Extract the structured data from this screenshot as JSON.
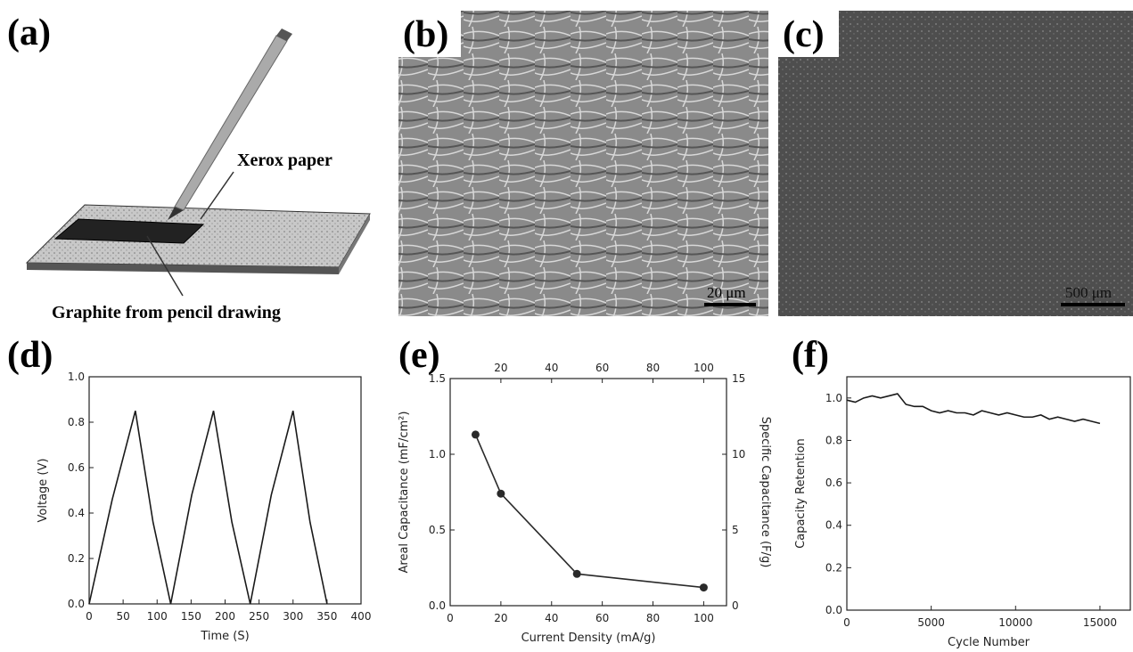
{
  "panel_a": {
    "label": "(a)",
    "annotations": [
      "Xerox paper",
      "Graphite from pencil drawing"
    ]
  },
  "panel_b": {
    "label": "(b)",
    "scale_bar": "20 μm"
  },
  "panel_c": {
    "label": "(c)",
    "scale_bar": "500 μm"
  },
  "chart_data": [
    {
      "type": "line",
      "panel_label": "(d)",
      "x_label": "Time (S)",
      "y_label": "Voltage (V)",
      "xlim": [
        0,
        400
      ],
      "xticks": [
        0,
        50,
        100,
        150,
        200,
        250,
        300,
        350,
        400
      ],
      "ylim": [
        0,
        1
      ],
      "yticks": [
        {
          "value": 0,
          "label": "0.0"
        },
        0.2,
        0.4,
        0.6,
        0.8,
        {
          "value": 1,
          "label": "1.0"
        }
      ],
      "x": [
        0,
        34,
        68,
        94,
        120,
        151,
        183,
        210,
        237,
        268,
        300,
        325,
        350
      ],
      "series": [
        {
          "color": "#1a1a1a",
          "markers": false,
          "values": [
            0,
            0.46,
            0.85,
            0.36,
            0,
            0.48,
            0.85,
            0.36,
            0,
            0.48,
            0.85,
            0.36,
            0
          ]
        }
      ]
    },
    {
      "type": "line",
      "panel_label": "(e)",
      "x_label": "Current Density (mA/g)",
      "y_label": "Areal Capacitance (mF/cm²)",
      "y2_label": "Specific Capacitance (F/g)",
      "xlim": [
        0,
        109
      ],
      "xticks": [
        0,
        20,
        40,
        60,
        80,
        100
      ],
      "x2ticks": [
        20,
        40,
        60,
        80,
        100
      ],
      "ylim": [
        0,
        1.5
      ],
      "yticks": [
        {
          "value": 0,
          "label": "0.0"
        },
        0.5,
        {
          "value": 1,
          "label": "1.0"
        },
        1.5
      ],
      "y2lim": [
        0,
        15
      ],
      "y2ticks": [
        0,
        5,
        10,
        15
      ],
      "x": [
        10,
        20,
        50,
        100
      ],
      "series": [
        {
          "color": "#2a2a2a",
          "markers": true,
          "values": [
            1.13,
            0.74,
            0.21,
            0.12
          ]
        }
      ]
    },
    {
      "type": "line",
      "panel_label": "(f)",
      "x_label": "Cycle Number",
      "y_label": "Capacity Retention",
      "xlim": [
        0,
        16800
      ],
      "xticks": [
        0,
        5000,
        10000,
        15000
      ],
      "ylim": [
        0,
        1.1
      ],
      "yticks": [
        {
          "value": 0,
          "label": "0.0"
        },
        0.2,
        0.4,
        0.6,
        0.8,
        {
          "value": 1,
          "label": "1.0"
        }
      ],
      "x": [
        0,
        500,
        1000,
        1500,
        2000,
        2500,
        3000,
        3500,
        4000,
        4500,
        5000,
        5500,
        6000,
        6500,
        7000,
        7500,
        8000,
        8500,
        9000,
        9500,
        10000,
        10500,
        11000,
        11500,
        12000,
        12500,
        13000,
        13500,
        14000,
        14500,
        15000
      ],
      "series": [
        {
          "color": "#1a1a1a",
          "markers": false,
          "values": [
            0.99,
            0.98,
            1.0,
            1.01,
            1.0,
            1.01,
            1.02,
            0.97,
            0.96,
            0.96,
            0.94,
            0.93,
            0.94,
            0.93,
            0.93,
            0.92,
            0.94,
            0.93,
            0.92,
            0.93,
            0.92,
            0.91,
            0.91,
            0.92,
            0.9,
            0.91,
            0.9,
            0.89,
            0.9,
            0.89,
            0.88
          ]
        }
      ]
    }
  ]
}
